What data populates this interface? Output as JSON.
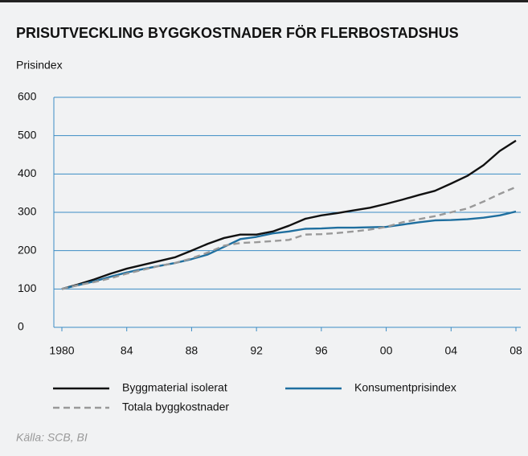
{
  "chart_data": {
    "type": "line",
    "title": "PRISUTVECKLING BYGGKOSTNADER FÖR FLERBOSTADSHUS",
    "y_label": "Prisindex",
    "source": "Källa: SCB, BI",
    "x": [
      1980,
      1981,
      1982,
      1983,
      1984,
      1985,
      1986,
      1987,
      1988,
      1989,
      1990,
      1991,
      1992,
      1993,
      1994,
      1995,
      1996,
      1997,
      1998,
      1999,
      2000,
      2001,
      2002,
      2003,
      2004,
      2005,
      2006,
      2007,
      2008
    ],
    "series": [
      {
        "name": "Byggmaterial isolerat",
        "color": "#111111",
        "dashed": false,
        "values": [
          100,
          112,
          125,
          140,
          153,
          163,
          173,
          183,
          200,
          218,
          233,
          242,
          242,
          250,
          265,
          283,
          292,
          298,
          305,
          312,
          322,
          333,
          345,
          356,
          375,
          395,
          423,
          460,
          487
        ]
      },
      {
        "name": "Konsumentprisindex",
        "color": "#1f6f9f",
        "dashed": false,
        "values": [
          100,
          110,
          120,
          132,
          143,
          152,
          160,
          168,
          178,
          190,
          210,
          230,
          236,
          245,
          250,
          257,
          258,
          260,
          260,
          261,
          262,
          268,
          274,
          279,
          280,
          282,
          286,
          292,
          302
        ]
      },
      {
        "name": "Totala byggkostnader",
        "color": "#999999",
        "dashed": true,
        "values": [
          100,
          110,
          118,
          128,
          140,
          150,
          160,
          168,
          180,
          195,
          213,
          220,
          222,
          225,
          228,
          242,
          243,
          246,
          250,
          255,
          262,
          274,
          282,
          290,
          300,
          310,
          328,
          348,
          366
        ]
      }
    ],
    "xlim": [
      1980,
      2008
    ],
    "xticks": [
      {
        "value": 1980,
        "label": "1980"
      },
      {
        "value": 1984,
        "label": "84"
      },
      {
        "value": 1988,
        "label": "88"
      },
      {
        "value": 1992,
        "label": "92"
      },
      {
        "value": 1996,
        "label": "96"
      },
      {
        "value": 2000,
        "label": "00"
      },
      {
        "value": 2004,
        "label": "04"
      },
      {
        "value": 2008,
        "label": "08"
      }
    ],
    "ylim": [
      0,
      600
    ],
    "yticks": [
      0,
      100,
      200,
      300,
      400,
      500,
      600
    ],
    "grid": true,
    "grid_color": "#3b8cc4"
  }
}
